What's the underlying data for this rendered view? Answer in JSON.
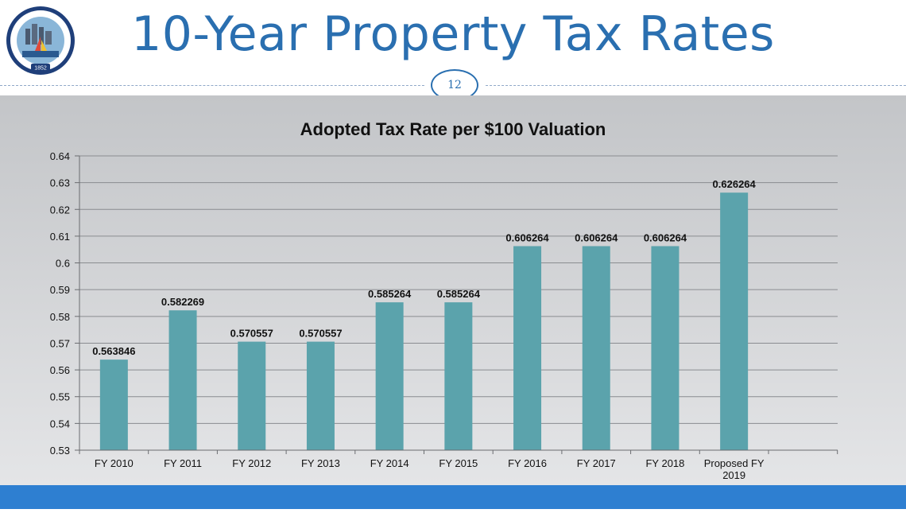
{
  "page": {
    "title": "10-Year Property Tax Rates",
    "slide_number": "12",
    "seal_text": "CITY OF CORPUS CHRISTI TEXAS",
    "seal_year": "1852"
  },
  "colors": {
    "title": "#2a6fb0",
    "bar": "#5ba3ac",
    "footer": "#2e7fd1"
  },
  "chart_data": {
    "type": "bar",
    "title": "Adopted Tax Rate per $100 Valuation",
    "categories": [
      "FY 2010",
      "FY 2011",
      "FY 2012",
      "FY 2013",
      "FY 2014",
      "FY 2015",
      "FY 2016",
      "FY 2017",
      "FY 2018",
      "Proposed FY 2019"
    ],
    "values": [
      0.563846,
      0.582269,
      0.570557,
      0.570557,
      0.585264,
      0.585264,
      0.606264,
      0.606264,
      0.606264,
      0.626264
    ],
    "data_labels": [
      "0.563846",
      "0.582269",
      "0.570557",
      "0.570557",
      "0.585264",
      "0.585264",
      "0.606264",
      "0.606264",
      "0.606264",
      "0.626264"
    ],
    "y_ticks": [
      "0.53",
      "0.54",
      "0.55",
      "0.56",
      "0.57",
      "0.58",
      "0.59",
      "0.6",
      "0.61",
      "0.62",
      "0.63",
      "0.64"
    ],
    "ylim": [
      0.53,
      0.64
    ],
    "grid": true,
    "legend": "none"
  }
}
